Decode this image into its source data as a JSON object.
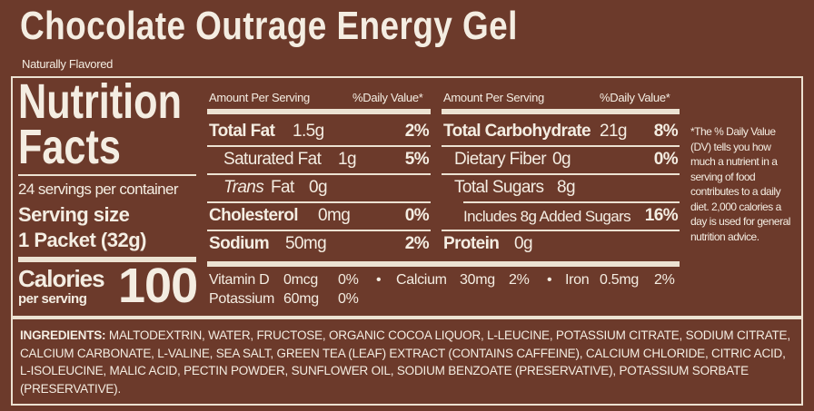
{
  "header": {
    "title": "Chocolate Outrage Energy Gel",
    "subtitle": "Naturally Flavored"
  },
  "facts": {
    "heading_1": "Nutrition",
    "heading_2": "Facts",
    "servings": "24 servings per container",
    "serving_size_label": "Serving size",
    "serving_size": "1 Packet (32g)",
    "calories_label": "Calories",
    "calories_sub": "per serving",
    "calories": "100"
  },
  "left_table": {
    "col_1": "Amount Per Serving",
    "col_2": "%Daily Value*",
    "rows": [
      {
        "name": "Total Fat",
        "amount": "1.5g",
        "dv": "2%"
      },
      {
        "name": "Saturated Fat",
        "amount": "1g",
        "dv": "5%"
      },
      {
        "name_italic": "Trans",
        "name": "Fat",
        "amount": "0g"
      },
      {
        "name": "Cholesterol",
        "amount": "0mg",
        "dv": "0%"
      },
      {
        "name": "Sodium",
        "amount": "50mg",
        "dv": "2%"
      }
    ]
  },
  "right_table": {
    "col_1": "Amount Per Serving",
    "col_2": "%Daily Value*",
    "rows": [
      {
        "name": "Total Carbohydrate",
        "amount": "21g",
        "dv": "8%"
      },
      {
        "name": "Dietary Fiber",
        "amount": "0g",
        "dv": "0%"
      },
      {
        "name": "Total Sugars",
        "amount": "8g"
      },
      {
        "name": "Includes 8g Added Sugars",
        "dv": "16%"
      },
      {
        "name": "Protein",
        "amount": "0g"
      }
    ]
  },
  "micros": [
    {
      "name": "Vitamin D",
      "amount": "0mcg",
      "dv": "0%"
    },
    {
      "name": "Calcium",
      "amount": "30mg",
      "dv": "2%"
    },
    {
      "name": "Iron",
      "amount": "0.5mg",
      "dv": "2%"
    },
    {
      "name": "Potassium",
      "amount": "60mg",
      "dv": "0%"
    }
  ],
  "footnote": "*The % Daily Value (DV) tells you how much a nutrient in a serving of food contributes to a daily diet. 2,000 calories a day is used for general nutrition advice.",
  "ingredients": {
    "label": "INGREDIENTS:",
    "text": "MALTODEXTRIN, WATER, FRUCTOSE, ORGANIC COCOA LIQUOR, L-LEUCINE, POTASSIUM CITRATE, SODIUM CITRATE, CALCIUM CARBONATE, L-VALINE, SEA SALT, GREEN TEA (LEAF) EXTRACT (CONTAINS CAFFEINE), CALCIUM CHLORIDE, CITRIC ACID, L-ISOLEUCINE, MALIC ACID, PECTIN POWDER, SUNFLOWER OIL, SODIUM BENZOATE (PRESERVATIVE), POTASSIUM SORBATE (PRESERVATIVE)."
  }
}
